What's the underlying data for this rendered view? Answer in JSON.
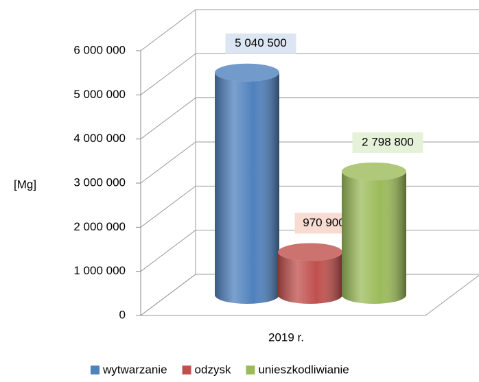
{
  "chart_data": {
    "type": "bar3d",
    "y_label": "[Mg]",
    "categories": [
      "2019 r."
    ],
    "series": [
      {
        "name": "wytwarzanie",
        "color": "#4f81bd",
        "values": [
          5040500
        ],
        "value_labels": [
          "5 040 500"
        ]
      },
      {
        "name": "odzysk",
        "color": "#c0504d",
        "values": [
          970900
        ],
        "value_labels": [
          "970 900"
        ]
      },
      {
        "name": "unieszkodliwianie",
        "color": "#9bbb59",
        "values": [
          2798800
        ],
        "value_labels": [
          "2 798 800"
        ]
      }
    ],
    "ylim": [
      0,
      6000000
    ],
    "yticks": [
      0,
      {
        "value": 1000000,
        "label": "1 000 000"
      },
      {
        "value": 2000000,
        "label": "2 000 000"
      },
      {
        "value": 3000000,
        "label": "3 000 000"
      },
      {
        "value": 4000000,
        "label": "4 000 000"
      },
      {
        "value": 5000000,
        "label": "5 000 000"
      },
      {
        "value": 6000000,
        "label": "6 000 000"
      }
    ],
    "grid": true,
    "legend": "bottom"
  }
}
